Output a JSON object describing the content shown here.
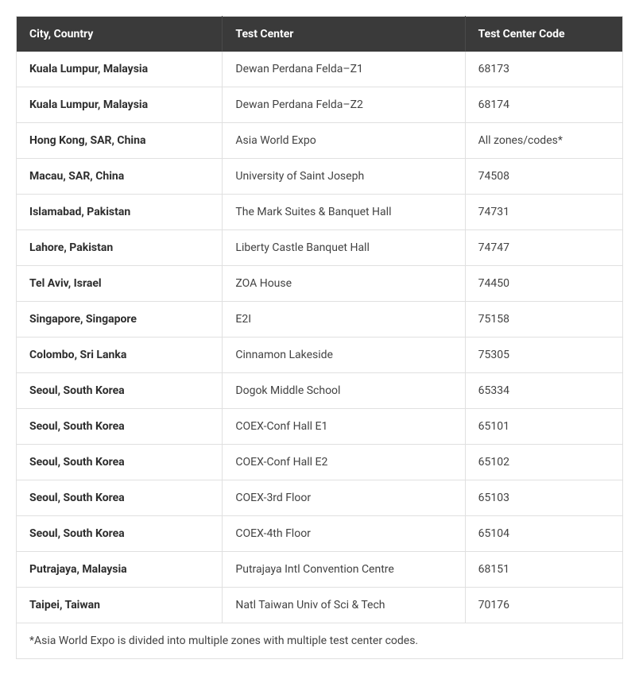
{
  "table": {
    "columns": [
      "City, Country",
      "Test Center",
      "Test Center Code"
    ],
    "column_widths_pct": [
      34,
      40,
      26
    ],
    "header_background_color": "#3a3a3a",
    "header_text_color": "#ffffff",
    "header_fontsize": 14,
    "header_fontweight": 700,
    "cell_fontsize": 14,
    "cell_text_color": "#424242",
    "city_fontweight": 700,
    "city_text_color": "#2e2e2e",
    "border_color": "#e0e0e0",
    "row_background_color": "#ffffff",
    "rows": [
      {
        "city": "Kuala Lumpur, Malaysia",
        "center": "Dewan Perdana Felda–Z1",
        "code": "68173"
      },
      {
        "city": "Kuala Lumpur, Malaysia",
        "center": "Dewan Perdana Felda–Z2",
        "code": "68174"
      },
      {
        "city": "Hong Kong, SAR, China",
        "center": "Asia World Expo",
        "code": "All zones/codes*"
      },
      {
        "city": "Macau, SAR, China",
        "center": "University of Saint Joseph",
        "code": "74508"
      },
      {
        "city": "Islamabad, Pakistan",
        "center": "The Mark Suites & Banquet Hall",
        "code": "74731"
      },
      {
        "city": "Lahore, Pakistan",
        "center": "Liberty Castle Banquet Hall",
        "code": "74747"
      },
      {
        "city": "Tel Aviv, Israel",
        "center": "ZOA House",
        "code": "74450"
      },
      {
        "city": "Singapore, Singapore",
        "center": "E2I",
        "code": "75158"
      },
      {
        "city": "Colombo, Sri Lanka",
        "center": "Cinnamon Lakeside",
        "code": "75305"
      },
      {
        "city": "Seoul, South Korea",
        "center": "Dogok Middle School",
        "code": "65334"
      },
      {
        "city": "Seoul, South Korea",
        "center": "COEX-Conf Hall E1",
        "code": "65101"
      },
      {
        "city": "Seoul, South Korea",
        "center": "COEX-Conf Hall E2",
        "code": "65102"
      },
      {
        "city": "Seoul, South Korea",
        "center": "COEX-3rd Floor",
        "code": "65103"
      },
      {
        "city": "Seoul, South Korea",
        "center": "COEX-4th Floor",
        "code": "65104"
      },
      {
        "city": "Putrajaya, Malaysia",
        "center": "Putrajaya Intl Convention Centre",
        "code": "68151"
      },
      {
        "city": "Taipei, Taiwan",
        "center": "Natl Taiwan Univ of Sci & Tech",
        "code": "70176"
      }
    ],
    "footnote": "*Asia World Expo is divided into multiple zones with multiple test center codes."
  }
}
